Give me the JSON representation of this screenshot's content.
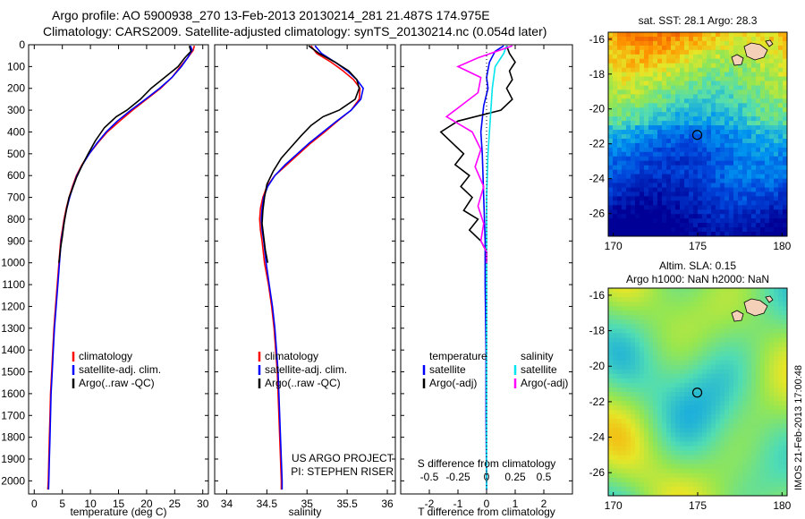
{
  "title_line1": "Argo profile: AO 5900938_270 13-Feb-2013 20130214_281 21.487S 174.975E",
  "title_line2": "Climatology: CARS2009. Satellite-adjusted climatology: synTS_20130214.nc (0.054d later)",
  "side_label": "IMOS 21-Feb-2013 17:00:48",
  "chart_data": [
    {
      "type": "line",
      "xlabel": "temperature (deg C)",
      "xlim": [
        -1,
        31
      ],
      "xticks": [
        0,
        5,
        10,
        15,
        20,
        25,
        30
      ],
      "ylim": [
        2060,
        0
      ],
      "yticks": [
        0,
        100,
        200,
        300,
        400,
        500,
        600,
        700,
        800,
        900,
        1000,
        1100,
        1200,
        1300,
        1400,
        1500,
        1600,
        1700,
        1800,
        1900,
        2000
      ],
      "legend": [
        "climatology",
        "satellite-adj. clim.",
        "Argo(..raw -QC)"
      ],
      "colors": [
        "#ff0000",
        "#0000ff",
        "#000000"
      ],
      "series": [
        {
          "name": "climatology",
          "points": [
            [
              28.5,
              5
            ],
            [
              28.3,
              25
            ],
            [
              27.3,
              60
            ],
            [
              26.0,
              100
            ],
            [
              24.5,
              150
            ],
            [
              22.5,
              200
            ],
            [
              20.0,
              250
            ],
            [
              17.5,
              300
            ],
            [
              15.2,
              350
            ],
            [
              13.0,
              400
            ],
            [
              11.3,
              450
            ],
            [
              9.8,
              500
            ],
            [
              8.5,
              550
            ],
            [
              7.5,
              600
            ],
            [
              6.8,
              650
            ],
            [
              6.2,
              700
            ],
            [
              5.7,
              750
            ],
            [
              5.3,
              800
            ],
            [
              5.0,
              850
            ],
            [
              4.7,
              900
            ],
            [
              4.4,
              1000
            ],
            [
              4.1,
              1100
            ],
            [
              3.8,
              1200
            ],
            [
              3.5,
              1300
            ],
            [
              3.3,
              1400
            ],
            [
              3.1,
              1500
            ],
            [
              2.9,
              1600
            ],
            [
              2.8,
              1700
            ],
            [
              2.7,
              1800
            ],
            [
              2.6,
              1900
            ],
            [
              2.5,
              2000
            ],
            [
              2.4,
              2040
            ]
          ]
        },
        {
          "name": "satellite-adj. clim.",
          "points": [
            [
              27.8,
              5
            ],
            [
              28.1,
              25
            ],
            [
              27.3,
              60
            ],
            [
              26.2,
              100
            ],
            [
              24.5,
              150
            ],
            [
              22.3,
              200
            ],
            [
              19.8,
              250
            ],
            [
              17.2,
              300
            ],
            [
              14.8,
              350
            ],
            [
              12.8,
              400
            ],
            [
              11.2,
              450
            ],
            [
              9.8,
              500
            ],
            [
              8.6,
              550
            ],
            [
              7.6,
              600
            ],
            [
              6.9,
              650
            ],
            [
              6.3,
              700
            ],
            [
              5.8,
              750
            ],
            [
              5.4,
              800
            ],
            [
              5.1,
              850
            ],
            [
              4.8,
              900
            ],
            [
              4.5,
              1000
            ],
            [
              4.2,
              1100
            ],
            [
              3.9,
              1200
            ],
            [
              3.6,
              1300
            ],
            [
              3.4,
              1400
            ],
            [
              3.2,
              1500
            ],
            [
              3.0,
              1600
            ],
            [
              2.9,
              1700
            ],
            [
              2.8,
              1800
            ],
            [
              2.7,
              1900
            ],
            [
              2.6,
              2000
            ],
            [
              2.55,
              2040
            ]
          ]
        },
        {
          "name": "Argo(..raw -QC)",
          "points": [
            [
              27.6,
              5
            ],
            [
              27.9,
              30
            ],
            [
              26.8,
              60
            ],
            [
              25.6,
              100
            ],
            [
              23.2,
              150
            ],
            [
              20.8,
              200
            ],
            [
              18.9,
              250
            ],
            [
              16.5,
              300
            ],
            [
              14.6,
              330
            ],
            [
              12.5,
              380
            ],
            [
              10.9,
              440
            ],
            [
              9.6,
              500
            ],
            [
              8.4,
              560
            ],
            [
              7.5,
              610
            ],
            [
              6.8,
              660
            ],
            [
              6.2,
              700
            ],
            [
              5.7,
              760
            ],
            [
              5.3,
              820
            ],
            [
              5.0,
              880
            ],
            [
              4.7,
              930
            ],
            [
              4.4,
              1000
            ]
          ]
        }
      ]
    },
    {
      "type": "line",
      "xlabel": "salinity",
      "xlim": [
        33.85,
        36.1
      ],
      "xticks": [
        34,
        34.5,
        35,
        35.5,
        36
      ],
      "ylim": [
        2060,
        0
      ],
      "legend": [
        "climatology",
        "satellite-adj. clim.",
        "Argo(..raw -QC)"
      ],
      "colors": [
        "#ff0000",
        "#0000ff",
        "#000000"
      ],
      "annotations": [
        "US ARGO PROJECT",
        "PI: STEPHEN RISER"
      ],
      "series": [
        {
          "name": "climatology",
          "points": [
            [
              35.05,
              5
            ],
            [
              35.12,
              40
            ],
            [
              35.3,
              80
            ],
            [
              35.45,
              120
            ],
            [
              35.58,
              160
            ],
            [
              35.66,
              200
            ],
            [
              35.65,
              250
            ],
            [
              35.55,
              300
            ],
            [
              35.38,
              350
            ],
            [
              35.22,
              400
            ],
            [
              35.05,
              450
            ],
            [
              34.9,
              500
            ],
            [
              34.75,
              550
            ],
            [
              34.6,
              600
            ],
            [
              34.5,
              650
            ],
            [
              34.45,
              700
            ],
            [
              34.42,
              750
            ],
            [
              34.41,
              800
            ],
            [
              34.42,
              850
            ],
            [
              34.44,
              900
            ],
            [
              34.47,
              1000
            ],
            [
              34.52,
              1100
            ],
            [
              34.56,
              1200
            ],
            [
              34.59,
              1300
            ],
            [
              34.61,
              1400
            ],
            [
              34.63,
              1500
            ],
            [
              34.64,
              1600
            ],
            [
              34.65,
              1700
            ],
            [
              34.66,
              1800
            ],
            [
              34.67,
              1900
            ],
            [
              34.68,
              2000
            ],
            [
              34.68,
              2040
            ]
          ]
        },
        {
          "name": "satellite-adj. clim.",
          "points": [
            [
              35.1,
              5
            ],
            [
              35.18,
              40
            ],
            [
              35.35,
              80
            ],
            [
              35.5,
              120
            ],
            [
              35.62,
              160
            ],
            [
              35.7,
              200
            ],
            [
              35.67,
              250
            ],
            [
              35.55,
              300
            ],
            [
              35.37,
              350
            ],
            [
              35.2,
              400
            ],
            [
              35.03,
              450
            ],
            [
              34.88,
              500
            ],
            [
              34.73,
              550
            ],
            [
              34.6,
              600
            ],
            [
              34.51,
              650
            ],
            [
              34.46,
              700
            ],
            [
              34.44,
              750
            ],
            [
              34.43,
              800
            ],
            [
              34.44,
              850
            ],
            [
              34.46,
              900
            ],
            [
              34.49,
              1000
            ],
            [
              34.53,
              1100
            ],
            [
              34.57,
              1200
            ],
            [
              34.6,
              1300
            ],
            [
              34.62,
              1400
            ],
            [
              34.64,
              1500
            ],
            [
              34.65,
              1600
            ],
            [
              34.66,
              1700
            ],
            [
              34.67,
              1800
            ],
            [
              34.68,
              1900
            ],
            [
              34.69,
              2000
            ],
            [
              34.69,
              2040
            ]
          ]
        },
        {
          "name": "Argo(..raw -QC)",
          "points": [
            [
              35.02,
              5
            ],
            [
              35.15,
              40
            ],
            [
              35.35,
              80
            ],
            [
              35.52,
              120
            ],
            [
              35.62,
              160
            ],
            [
              35.65,
              200
            ],
            [
              35.6,
              250
            ],
            [
              35.4,
              300
            ],
            [
              35.2,
              330
            ],
            [
              35.05,
              370
            ],
            [
              34.92,
              420
            ],
            [
              34.8,
              470
            ],
            [
              34.68,
              520
            ],
            [
              34.58,
              580
            ],
            [
              34.5,
              640
            ],
            [
              34.47,
              700
            ],
            [
              34.45,
              760
            ],
            [
              34.44,
              820
            ],
            [
              34.46,
              880
            ],
            [
              34.48,
              940
            ],
            [
              34.51,
              1000
            ]
          ]
        }
      ]
    },
    {
      "type": "line",
      "xlabel": "T difference from climatology",
      "xlabel_top": "S difference from climatology",
      "xlim": [
        -3,
        3
      ],
      "xticks": [
        -2,
        -1,
        0,
        1,
        2
      ],
      "xticks_top": [
        "-0.5",
        "-0.25",
        "0",
        "0.25",
        "0.5"
      ],
      "ylim": [
        2060,
        0
      ],
      "legend_headers": [
        "temperature",
        "salinity"
      ],
      "legend": [
        "satellite",
        "Argo(-adj)",
        "satellite",
        "Argo(-adj)"
      ],
      "colors": [
        "#0000ff",
        "#000000",
        "#00e5ee",
        "#ff00ff"
      ],
      "series": [
        {
          "name": "temperature satellite",
          "points": [
            [
              0.6,
              5
            ],
            [
              0.3,
              30
            ],
            [
              0.1,
              80
            ],
            [
              0.0,
              150
            ],
            [
              0.05,
              200
            ],
            [
              -0.1,
              280
            ],
            [
              -0.2,
              400
            ],
            [
              -0.15,
              500
            ],
            [
              -0.1,
              700
            ],
            [
              -0.05,
              900
            ],
            [
              -0.05,
              1100
            ],
            [
              -0.02,
              1400
            ],
            [
              -0.02,
              1700
            ],
            [
              0.0,
              2040
            ]
          ]
        },
        {
          "name": "temperature Argo(-adj)",
          "points": [
            [
              0.7,
              5
            ],
            [
              0.8,
              40
            ],
            [
              1.0,
              80
            ],
            [
              0.8,
              120
            ],
            [
              0.9,
              160
            ],
            [
              0.7,
              200
            ],
            [
              0.9,
              250
            ],
            [
              0.5,
              300
            ],
            [
              -1.0,
              350
            ],
            [
              -1.6,
              400
            ],
            [
              -1.2,
              450
            ],
            [
              -0.8,
              500
            ],
            [
              -1.1,
              550
            ],
            [
              -0.6,
              600
            ],
            [
              -0.9,
              650
            ],
            [
              -0.5,
              700
            ],
            [
              -0.8,
              760
            ],
            [
              -0.3,
              800
            ],
            [
              -0.6,
              850
            ],
            [
              -0.2,
              900
            ],
            [
              0.0,
              950
            ],
            [
              0.0,
              1000
            ]
          ]
        },
        {
          "name": "salinity satellite",
          "points": [
            [
              0.7,
              5
            ],
            [
              0.6,
              40
            ],
            [
              0.3,
              100
            ],
            [
              0.2,
              200
            ],
            [
              0.15,
              300
            ],
            [
              0.1,
              400
            ],
            [
              0.05,
              500
            ],
            [
              0.0,
              700
            ],
            [
              0.0,
              1000
            ],
            [
              0.0,
              1500
            ],
            [
              0.0,
              2040
            ]
          ]
        },
        {
          "name": "salinity Argo(-adj)",
          "points": [
            [
              0.9,
              5
            ],
            [
              -0.3,
              60
            ],
            [
              -1.0,
              100
            ],
            [
              -0.2,
              150
            ],
            [
              -0.3,
              220
            ],
            [
              -1.4,
              330
            ],
            [
              -0.5,
              400
            ],
            [
              -0.2,
              480
            ],
            [
              -0.4,
              560
            ],
            [
              -0.1,
              650
            ],
            [
              -0.3,
              740
            ],
            [
              -0.1,
              820
            ],
            [
              -0.2,
              900
            ],
            [
              0.0,
              950
            ],
            [
              0.0,
              1000
            ]
          ]
        }
      ]
    },
    {
      "type": "heatmap",
      "title": "sat. SST: 28.1  Argo: 28.3",
      "xticks": [
        170,
        175,
        180
      ],
      "yticks": [
        -16,
        -18,
        -20,
        -22,
        -24,
        -26
      ],
      "xlim": [
        169.7,
        180.3
      ],
      "ylim": [
        -27.3,
        -15.6
      ],
      "marker": {
        "lon": 174.975,
        "lat": -21.487
      }
    },
    {
      "type": "heatmap",
      "title": "Altim. SLA: 0.15",
      "subtitle": "Argo h1000: NaN h2000: NaN",
      "xticks": [
        170,
        175,
        180
      ],
      "yticks": [
        -16,
        -18,
        -20,
        -22,
        -24,
        -26
      ],
      "xlim": [
        169.7,
        180.3
      ],
      "ylim": [
        -27.3,
        -15.6
      ],
      "marker": {
        "lon": 174.975,
        "lat": -21.487
      }
    }
  ]
}
